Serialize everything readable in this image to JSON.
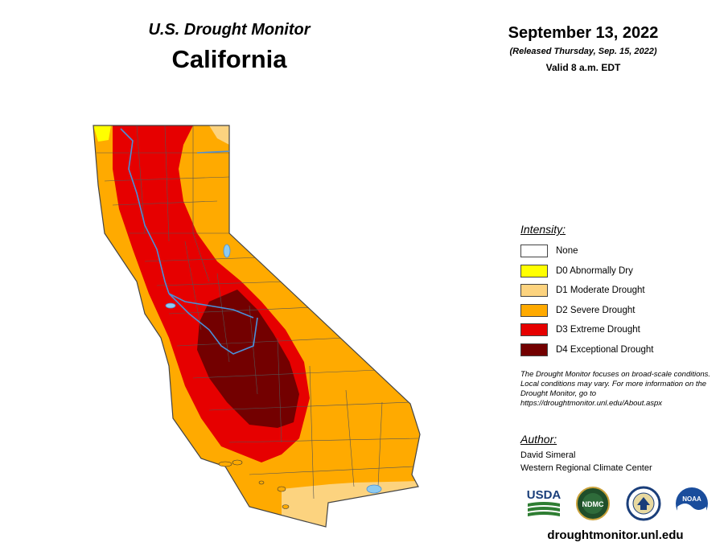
{
  "header": {
    "monitor_title": "U.S. Drought Monitor",
    "region": "California",
    "date": "September 13, 2022",
    "released": "(Released Thursday, Sep. 15, 2022)",
    "valid": "Valid 8 a.m. EDT"
  },
  "legend": {
    "heading": "Intensity:",
    "items": [
      {
        "label": "None",
        "color": "#ffffff"
      },
      {
        "label": "D0 Abnormally Dry",
        "color": "#ffff00"
      },
      {
        "label": "D1 Moderate Drought",
        "color": "#fcd37f"
      },
      {
        "label": "D2 Severe Drought",
        "color": "#ffaa00"
      },
      {
        "label": "D3 Extreme Drought",
        "color": "#e60000"
      },
      {
        "label": "D4 Exceptional Drought",
        "color": "#730000"
      }
    ]
  },
  "note": "The Drought Monitor focuses on broad-scale conditions. Local conditions may vary. For more information on the Drought Monitor, go to https://droughtmonitor.unl.edu/About.aspx",
  "author": {
    "heading": "Author:",
    "name": "David Simeral",
    "organization": "Western Regional Climate Center"
  },
  "logos": {
    "usda": "USDA",
    "ndmc": "NDMC",
    "doc": "doc-seal-icon",
    "noaa": "NOAA"
  },
  "website": "droughtmonitor.unl.edu",
  "colors": {
    "river": "#4a90d9",
    "lake": "#8ecbf0",
    "county_line": "#555555"
  }
}
